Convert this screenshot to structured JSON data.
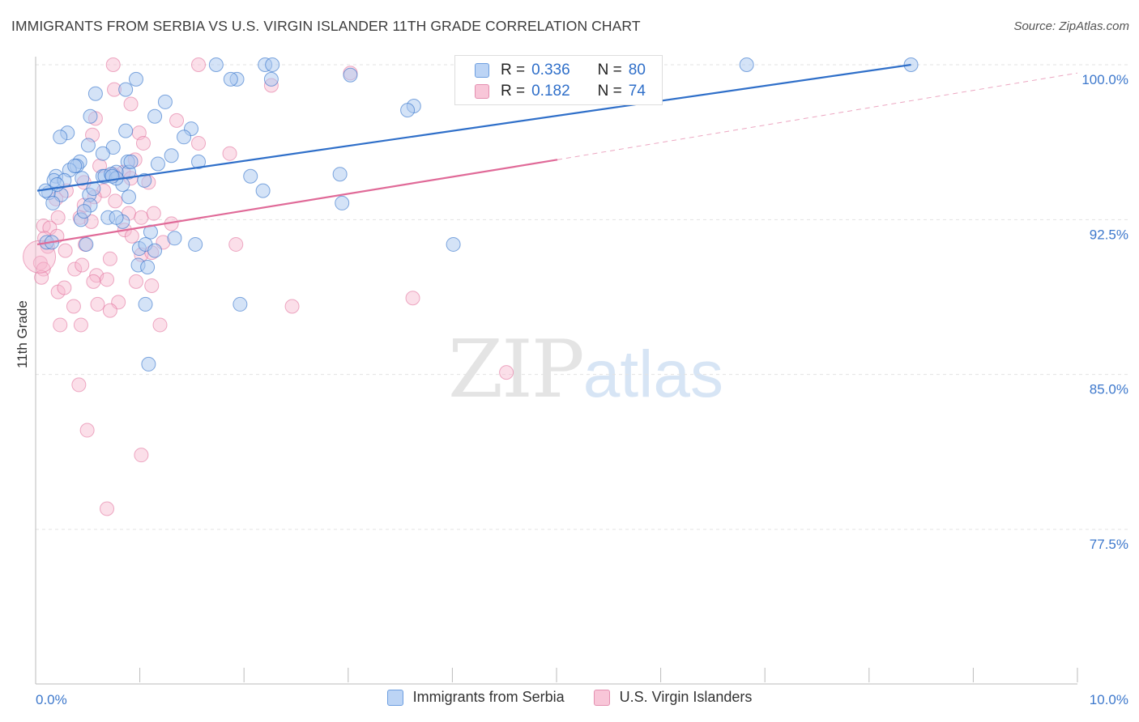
{
  "header": {
    "title": "IMMIGRANTS FROM SERBIA VS U.S. VIRGIN ISLANDER 11TH GRADE CORRELATION CHART",
    "source": "Source: ZipAtlas.com"
  },
  "legend": {
    "series1": {
      "r_label": "R =",
      "r_value": "0.336",
      "n_label": "N =",
      "n_value": "80"
    },
    "series2": {
      "r_label": "R =",
      "r_value": "0.182",
      "n_label": "N =",
      "n_value": "74"
    }
  },
  "bottom_legend": {
    "series1": "Immigrants from Serbia",
    "series2": "U.S. Virgin Islanders"
  },
  "watermark": {
    "zip": "ZIP",
    "atlas": "atlas"
  },
  "chart_data": {
    "type": "scatter",
    "title": "IMMIGRANTS FROM SERBIA VS U.S. VIRGIN ISLANDER 11TH GRADE CORRELATION CHART",
    "ylabel": "11th Grade",
    "xlim": [
      0,
      10
    ],
    "ylim": [
      70,
      100.7
    ],
    "x_tick_labels": [
      "0.0%",
      "10.0%"
    ],
    "y_ticks": [
      77.5,
      85.0,
      92.5,
      100.0
    ],
    "y_tick_labels": [
      "77.5%",
      "85.0%",
      "92.5%",
      "100.0%"
    ],
    "colors": {
      "series1": "#2f6fc9",
      "series1_fill": "#aac8f0",
      "series2": "#e06a98",
      "series2_fill": "#f6b8cf",
      "axis_text": "#3d78cc"
    },
    "series": [
      {
        "name": "Immigrants from Serbia",
        "R": 0.336,
        "N": 80,
        "trend": {
          "x0": 0.0,
          "y0": 93.9,
          "x1": 8.4,
          "y1": 100.0
        },
        "points": [
          [
            1.72,
            100.0
          ],
          [
            2.19,
            100.0
          ],
          [
            2.26,
            100.0
          ],
          [
            6.82,
            100.0
          ],
          [
            8.4,
            100.0
          ],
          [
            0.95,
            99.3
          ],
          [
            1.92,
            99.3
          ],
          [
            1.86,
            99.3
          ],
          [
            2.25,
            99.3
          ],
          [
            3.01,
            99.5
          ],
          [
            0.85,
            98.8
          ],
          [
            0.56,
            98.6
          ],
          [
            1.23,
            98.2
          ],
          [
            3.62,
            98.0
          ],
          [
            3.56,
            97.8
          ],
          [
            0.51,
            97.5
          ],
          [
            1.13,
            97.5
          ],
          [
            0.85,
            96.8
          ],
          [
            0.29,
            96.7
          ],
          [
            0.22,
            96.5
          ],
          [
            0.49,
            96.1
          ],
          [
            0.73,
            96.0
          ],
          [
            1.48,
            96.9
          ],
          [
            1.41,
            96.5
          ],
          [
            0.63,
            95.7
          ],
          [
            0.87,
            95.3
          ],
          [
            1.29,
            95.6
          ],
          [
            0.41,
            95.3
          ],
          [
            0.38,
            95.1
          ],
          [
            0.88,
            94.8
          ],
          [
            1.55,
            95.3
          ],
          [
            0.76,
            94.8
          ],
          [
            1.16,
            95.2
          ],
          [
            0.9,
            95.3
          ],
          [
            0.31,
            94.9
          ],
          [
            0.18,
            94.6
          ],
          [
            0.43,
            94.5
          ],
          [
            0.16,
            94.4
          ],
          [
            0.26,
            94.4
          ],
          [
            0.63,
            94.6
          ],
          [
            0.65,
            94.6
          ],
          [
            0.71,
            94.7
          ],
          [
            0.82,
            94.2
          ],
          [
            0.76,
            94.5
          ],
          [
            0.11,
            93.8
          ],
          [
            1.03,
            94.4
          ],
          [
            0.23,
            93.7
          ],
          [
            0.08,
            93.9
          ],
          [
            0.5,
            93.7
          ],
          [
            2.05,
            94.6
          ],
          [
            2.17,
            93.9
          ],
          [
            2.91,
            94.7
          ],
          [
            0.88,
            93.6
          ],
          [
            0.15,
            93.3
          ],
          [
            0.51,
            93.2
          ],
          [
            2.93,
            93.3
          ],
          [
            0.68,
            92.6
          ],
          [
            0.42,
            92.5
          ],
          [
            0.82,
            92.4
          ],
          [
            0.76,
            92.6
          ],
          [
            1.09,
            91.9
          ],
          [
            0.09,
            91.4
          ],
          [
            0.14,
            91.4
          ],
          [
            0.47,
            91.3
          ],
          [
            1.32,
            91.6
          ],
          [
            1.52,
            91.3
          ],
          [
            0.98,
            91.1
          ],
          [
            1.04,
            91.3
          ],
          [
            1.13,
            91.0
          ],
          [
            4.0,
            91.3
          ],
          [
            0.97,
            90.3
          ],
          [
            1.06,
            90.2
          ],
          [
            1.04,
            88.4
          ],
          [
            1.95,
            88.4
          ],
          [
            1.07,
            85.5
          ],
          [
            0.72,
            94.6
          ],
          [
            0.19,
            94.2
          ],
          [
            0.54,
            94.0
          ],
          [
            0.36,
            95.1
          ],
          [
            0.45,
            92.9
          ]
        ]
      },
      {
        "name": "U.S. Virgin Islanders",
        "R": 0.182,
        "N": 74,
        "trend": {
          "x0": 0.0,
          "y0": 91.3,
          "x1": 5.0,
          "y1": 95.4,
          "dash_to": {
            "x": 10.0,
            "y": 99.6
          }
        },
        "points": [
          [
            0.73,
            100.0
          ],
          [
            1.55,
            100.0
          ],
          [
            3.01,
            99.6
          ],
          [
            0.74,
            98.8
          ],
          [
            2.25,
            99.0
          ],
          [
            0.9,
            98.1
          ],
          [
            0.98,
            96.7
          ],
          [
            0.56,
            97.4
          ],
          [
            1.34,
            97.3
          ],
          [
            0.53,
            96.6
          ],
          [
            1.02,
            96.2
          ],
          [
            1.55,
            96.2
          ],
          [
            1.85,
            95.7
          ],
          [
            0.94,
            95.4
          ],
          [
            0.6,
            95.1
          ],
          [
            0.45,
            94.3
          ],
          [
            0.83,
            94.8
          ],
          [
            0.73,
            94.7
          ],
          [
            0.64,
            93.9
          ],
          [
            0.28,
            93.9
          ],
          [
            0.9,
            94.5
          ],
          [
            1.07,
            94.3
          ],
          [
            0.18,
            93.5
          ],
          [
            0.45,
            93.2
          ],
          [
            0.55,
            93.6
          ],
          [
            0.75,
            93.4
          ],
          [
            0.2,
            92.6
          ],
          [
            0.06,
            92.2
          ],
          [
            0.41,
            92.6
          ],
          [
            0.52,
            92.4
          ],
          [
            0.88,
            92.8
          ],
          [
            1.0,
            92.6
          ],
          [
            1.12,
            92.8
          ],
          [
            1.29,
            92.3
          ],
          [
            0.12,
            92.1
          ],
          [
            0.07,
            91.6
          ],
          [
            0.19,
            91.7
          ],
          [
            0.84,
            92.0
          ],
          [
            0.91,
            91.7
          ],
          [
            1.21,
            91.4
          ],
          [
            0.46,
            91.3
          ],
          [
            0.1,
            91.2
          ],
          [
            0.27,
            91.0
          ],
          [
            0.7,
            90.6
          ],
          [
            1.0,
            90.8
          ],
          [
            1.1,
            90.9
          ],
          [
            1.91,
            91.3
          ],
          [
            0.03,
            90.4
          ],
          [
            0.06,
            90.1
          ],
          [
            0.36,
            90.1
          ],
          [
            0.43,
            90.3
          ],
          [
            0.57,
            89.8
          ],
          [
            0.67,
            89.6
          ],
          [
            0.54,
            89.5
          ],
          [
            0.04,
            89.7
          ],
          [
            0.95,
            89.5
          ],
          [
            1.1,
            89.3
          ],
          [
            0.2,
            89.0
          ],
          [
            0.26,
            89.2
          ],
          [
            0.35,
            88.3
          ],
          [
            0.78,
            88.5
          ],
          [
            0.7,
            88.1
          ],
          [
            0.58,
            88.4
          ],
          [
            3.61,
            88.7
          ],
          [
            2.45,
            88.3
          ],
          [
            0.22,
            87.4
          ],
          [
            0.42,
            87.4
          ],
          [
            1.18,
            87.4
          ],
          [
            0.4,
            84.5
          ],
          [
            4.51,
            85.1
          ],
          [
            0.48,
            82.3
          ],
          [
            1.0,
            81.1
          ],
          [
            0.67,
            78.5
          ],
          [
            0.02,
            90.7
          ]
        ]
      }
    ]
  }
}
